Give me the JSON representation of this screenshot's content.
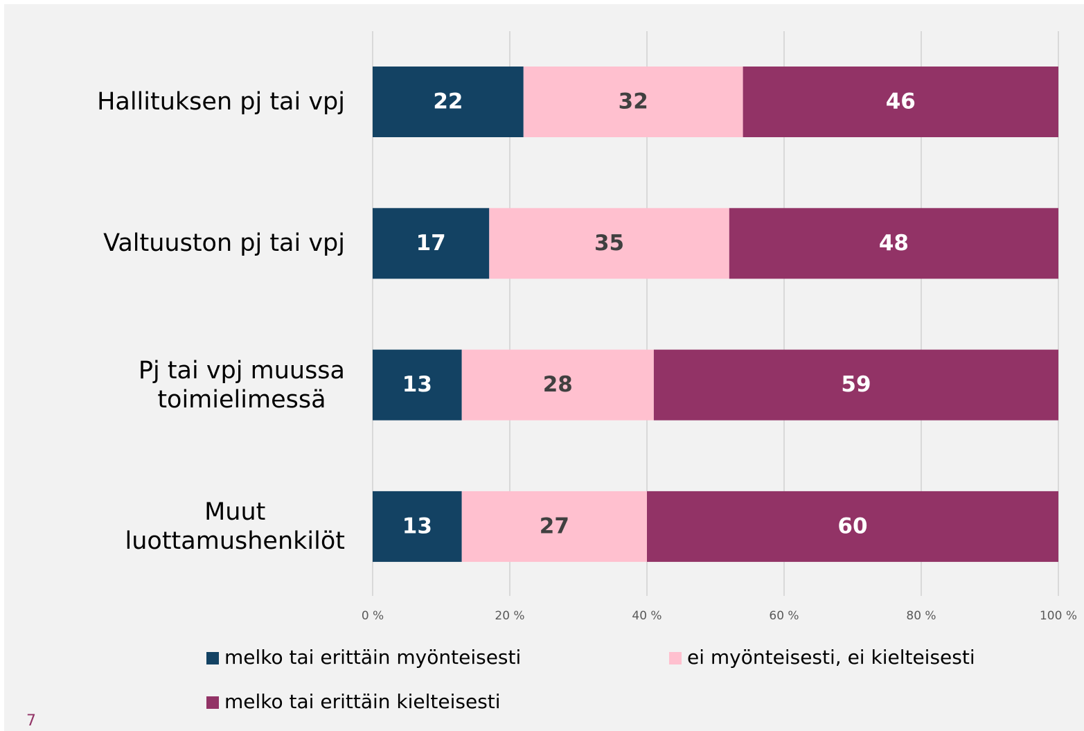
{
  "chart_data": {
    "type": "stacked_barh",
    "categories": [
      "Hallituksen pj tai vpj",
      "Valtuuston pj tai vpj",
      "Pj tai vpj muussa\ntoimielimessä",
      "Muut\nluottamushenkilöt"
    ],
    "series": [
      {
        "name": "melko tai erittäin myönteisesti",
        "color": "#134263",
        "label_color": "#ffffff",
        "values": [
          22,
          17,
          13,
          13
        ]
      },
      {
        "name": "ei myönteisesti, ei kielteisesti",
        "color": "#ffc0cf",
        "label_color": "#404040",
        "values": [
          32,
          35,
          28,
          27
        ]
      },
      {
        "name": "melko tai erittäin kielteisesti",
        "color": "#923366",
        "label_color": "#ffffff",
        "values": [
          46,
          48,
          59,
          60
        ]
      }
    ],
    "xlim": [
      0,
      100
    ],
    "xticks": [
      {
        "value": 0,
        "label": "0 %"
      },
      {
        "value": 20,
        "label": "20 %"
      },
      {
        "value": 40,
        "label": "40 %"
      },
      {
        "value": 60,
        "label": "60 %"
      },
      {
        "value": 80,
        "label": "80 %"
      },
      {
        "value": 100,
        "label": "100 %"
      }
    ],
    "grid": true,
    "legend": "bottom"
  },
  "page_number": "7"
}
